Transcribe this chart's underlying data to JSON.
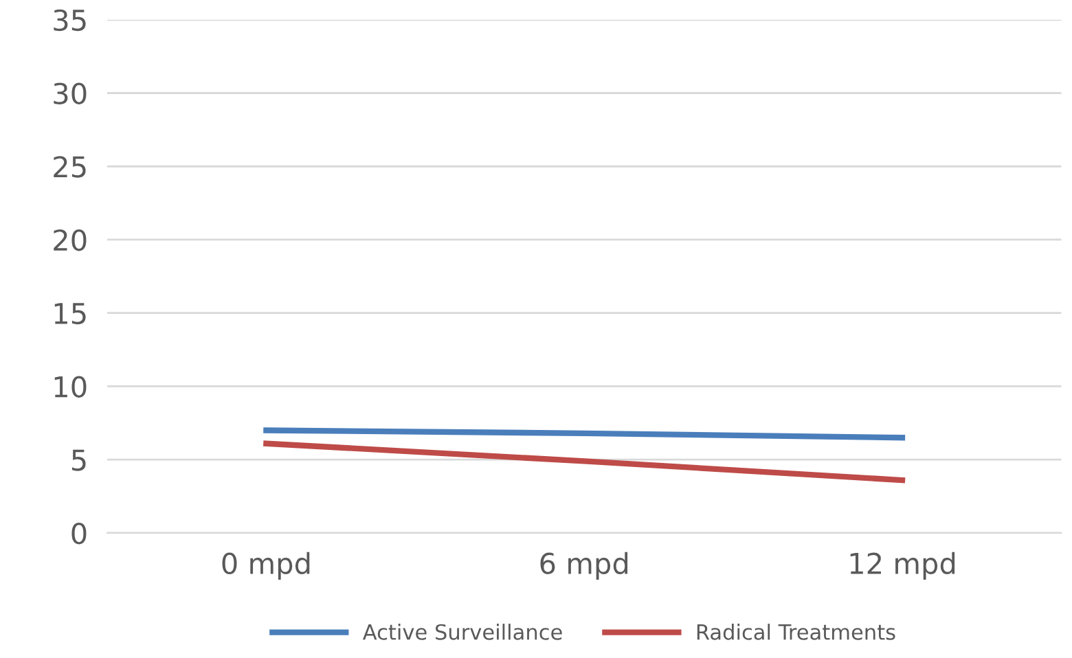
{
  "chart_data": {
    "type": "line",
    "categories": [
      "0 mpd",
      "6 mpd",
      "12 mpd"
    ],
    "series": [
      {
        "name": "Active Surveillance",
        "color": "#4a7ebb",
        "values": [
          7.0,
          6.8,
          6.5
        ]
      },
      {
        "name": "Radical Treatments",
        "color": "#be4b48",
        "values": [
          6.1,
          4.9,
          3.6
        ]
      }
    ],
    "ylim": [
      0,
      35
    ],
    "yticks": [
      0,
      5,
      10,
      15,
      20,
      25,
      30,
      35
    ],
    "grid": "y",
    "legend": "bottom",
    "marker": "none",
    "line_style": "solid"
  }
}
